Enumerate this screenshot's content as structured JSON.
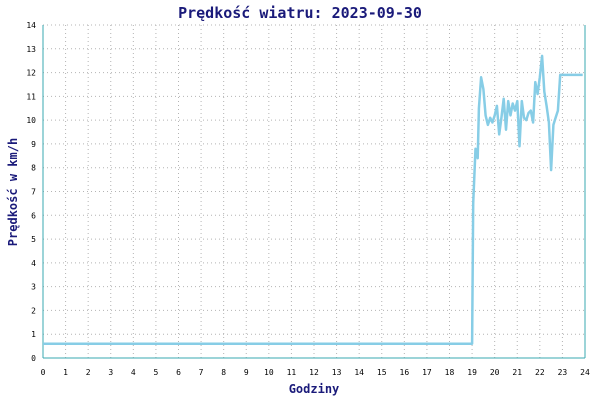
{
  "chart_data": {
    "type": "line",
    "title": "Prędkość wiatru: 2023-09-30",
    "xlabel": "Godziny",
    "ylabel": "Prędkość w km/h",
    "xlim": [
      0,
      24
    ],
    "ylim": [
      0,
      14
    ],
    "x_ticks": [
      "0",
      "1",
      "2",
      "3",
      "4",
      "5",
      "6",
      "7",
      "8",
      "9",
      "10",
      "11",
      "12",
      "13",
      "14",
      "15",
      "16",
      "17",
      "18",
      "19",
      "20",
      "21",
      "22",
      "23",
      "24"
    ],
    "y_ticks": [
      "0",
      "1",
      "2",
      "3",
      "4",
      "5",
      "6",
      "7",
      "8",
      "9",
      "10",
      "11",
      "12",
      "13",
      "14"
    ],
    "grid": true,
    "line_color": "#87cde6",
    "axis_color": "#3aa8b0",
    "title_color": "#1a1a7a",
    "series": [
      {
        "x": [
          0,
          19.0,
          19.05,
          19.15,
          19.25,
          19.3,
          19.4,
          19.5,
          19.6,
          19.7,
          19.8,
          19.9,
          20.0,
          20.1,
          20.2,
          20.3,
          20.4,
          20.5,
          20.6,
          20.7,
          20.8,
          20.9,
          21.0,
          21.1,
          21.2,
          21.3,
          21.4,
          21.5,
          21.6,
          21.7,
          21.8,
          21.9,
          22.0,
          22.1,
          22.2,
          22.3,
          22.4,
          22.5,
          22.6,
          22.7,
          22.8,
          22.9,
          23.0,
          23.1,
          23.2,
          23.3,
          23.4,
          23.5,
          23.6,
          23.7,
          23.8,
          23.9
        ],
        "y": [
          0.6,
          0.6,
          6.5,
          8.8,
          8.4,
          10.5,
          11.8,
          11.3,
          10.2,
          9.8,
          10.1,
          9.9,
          10.2,
          10.6,
          9.4,
          10.1,
          10.9,
          9.6,
          10.8,
          10.2,
          10.7,
          10.4,
          10.8,
          8.9,
          10.8,
          10.1,
          10.0,
          10.3,
          10.4,
          9.9,
          11.6,
          11.1,
          11.8,
          12.7,
          11.2,
          10.6,
          9.9,
          7.9,
          9.8,
          10.1,
          10.4,
          11.9,
          11.9,
          11.9,
          11.9,
          11.9,
          11.9,
          11.9,
          11.9,
          11.9,
          11.9,
          11.9
        ]
      }
    ]
  }
}
